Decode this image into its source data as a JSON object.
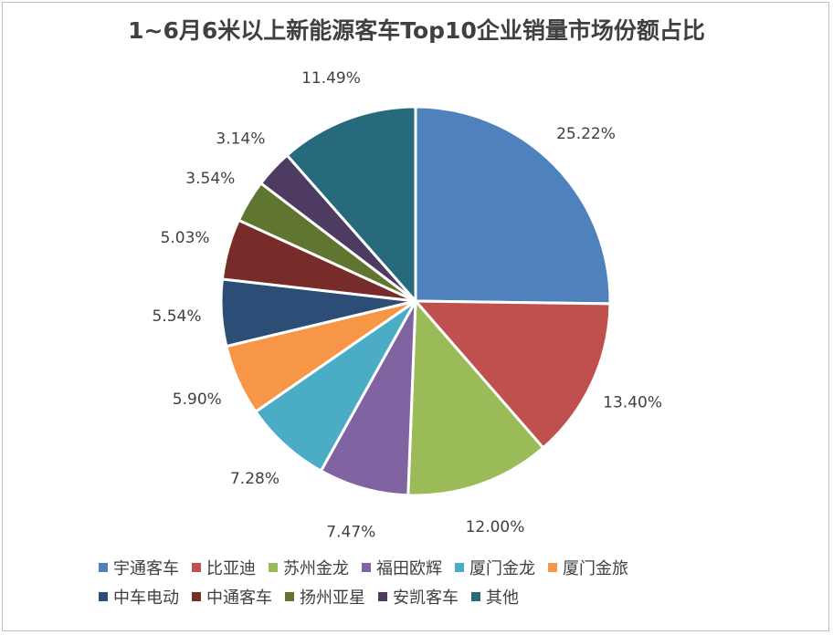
{
  "chart_data": {
    "type": "pie",
    "title": "1~6月6米以上新能源客车Top10企业销量市场份额占比",
    "legend_position": "bottom",
    "slices": [
      {
        "name": "宇通客车",
        "value": 25.22,
        "label": "25.22%",
        "color": "#4F81BD"
      },
      {
        "name": "比亚迪",
        "value": 13.4,
        "label": "13.40%",
        "color": "#C0504D"
      },
      {
        "name": "苏州金龙",
        "value": 12.0,
        "label": "12.00%",
        "color": "#9BBB59"
      },
      {
        "name": "福田欧辉",
        "value": 7.47,
        "label": "7.47%",
        "color": "#8064A2"
      },
      {
        "name": "厦门金龙",
        "value": 7.28,
        "label": "7.28%",
        "color": "#4BACC6"
      },
      {
        "name": "厦门金旅",
        "value": 5.9,
        "label": "5.90%",
        "color": "#F79646"
      },
      {
        "name": "中车电动",
        "value": 5.54,
        "label": "5.54%",
        "color": "#2C4D75"
      },
      {
        "name": "中通客车",
        "value": 5.03,
        "label": "5.03%",
        "color": "#772C2A"
      },
      {
        "name": "扬州亚星",
        "value": 3.54,
        "label": "3.54%",
        "color": "#5F7530"
      },
      {
        "name": "安凯客车",
        "value": 3.14,
        "label": "3.14%",
        "color": "#4D3B62"
      },
      {
        "name": "其他",
        "value": 11.49,
        "label": "11.49%",
        "color": "#276A7C"
      }
    ]
  }
}
